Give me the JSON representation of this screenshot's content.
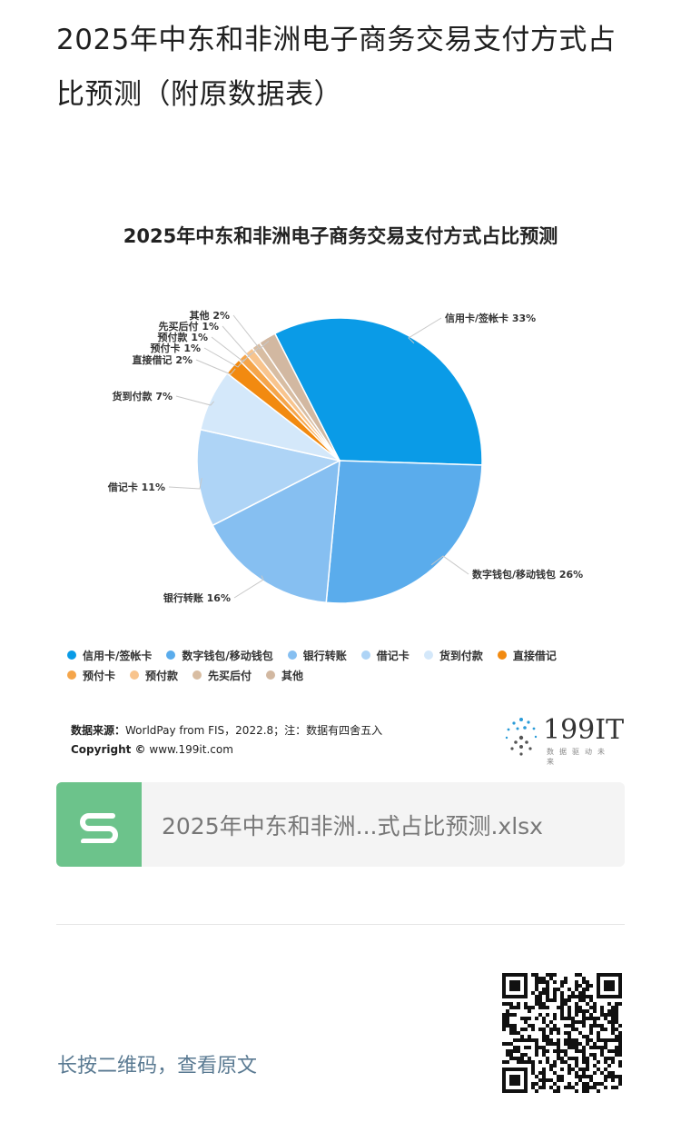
{
  "page": {
    "title": "2025年中东和非洲电子商务交易支付方式占比预测（附原数据表）",
    "file_name": "2025年中东和非洲...式占比预测.xlsx",
    "read_original": "长按二维码，查看原文"
  },
  "source": {
    "label": "数据来源：",
    "text": "WorldPay from FIS，2022.8；注：数据有四舍五入",
    "copyright_label": "Copyright ©",
    "copyright_text": "www.199it.com"
  },
  "logo": {
    "name": "199IT",
    "tagline": "数据驱动未来"
  },
  "chart_data": {
    "type": "pie",
    "title": "2025年中东和非洲电子商务交易支付方式占比预测",
    "unit": "%",
    "legend_position": "bottom",
    "slices": [
      {
        "name": "信用卡/签帐卡",
        "value": 33,
        "label": "信用卡/签帐卡 33%",
        "color": "#0a9be7"
      },
      {
        "name": "数字钱包/移动钱包",
        "value": 26,
        "label": "数字钱包/移动钱包 26%",
        "color": "#5aacec"
      },
      {
        "name": "银行转账",
        "value": 16,
        "label": "银行转账 16%",
        "color": "#86bff1"
      },
      {
        "name": "借记卡",
        "value": 11,
        "label": "借记卡 11%",
        "color": "#aed4f6"
      },
      {
        "name": "货到付款",
        "value": 7,
        "label": "货到付款 7%",
        "color": "#d4e8fa"
      },
      {
        "name": "直接借记",
        "value": 2,
        "label": "直接借记 2%",
        "color": "#f28a10"
      },
      {
        "name": "预付卡",
        "value": 1,
        "label": "预付卡 1%",
        "color": "#f5a54a"
      },
      {
        "name": "预付款",
        "value": 1,
        "label": "预付款 1%",
        "color": "#f8c48d"
      },
      {
        "name": "先买后付",
        "value": 1,
        "label": "先买后付 1%",
        "color": "#d8bda2"
      },
      {
        "name": "其他",
        "value": 2,
        "label": "其他 2%",
        "color": "#d2b8a1"
      }
    ]
  }
}
